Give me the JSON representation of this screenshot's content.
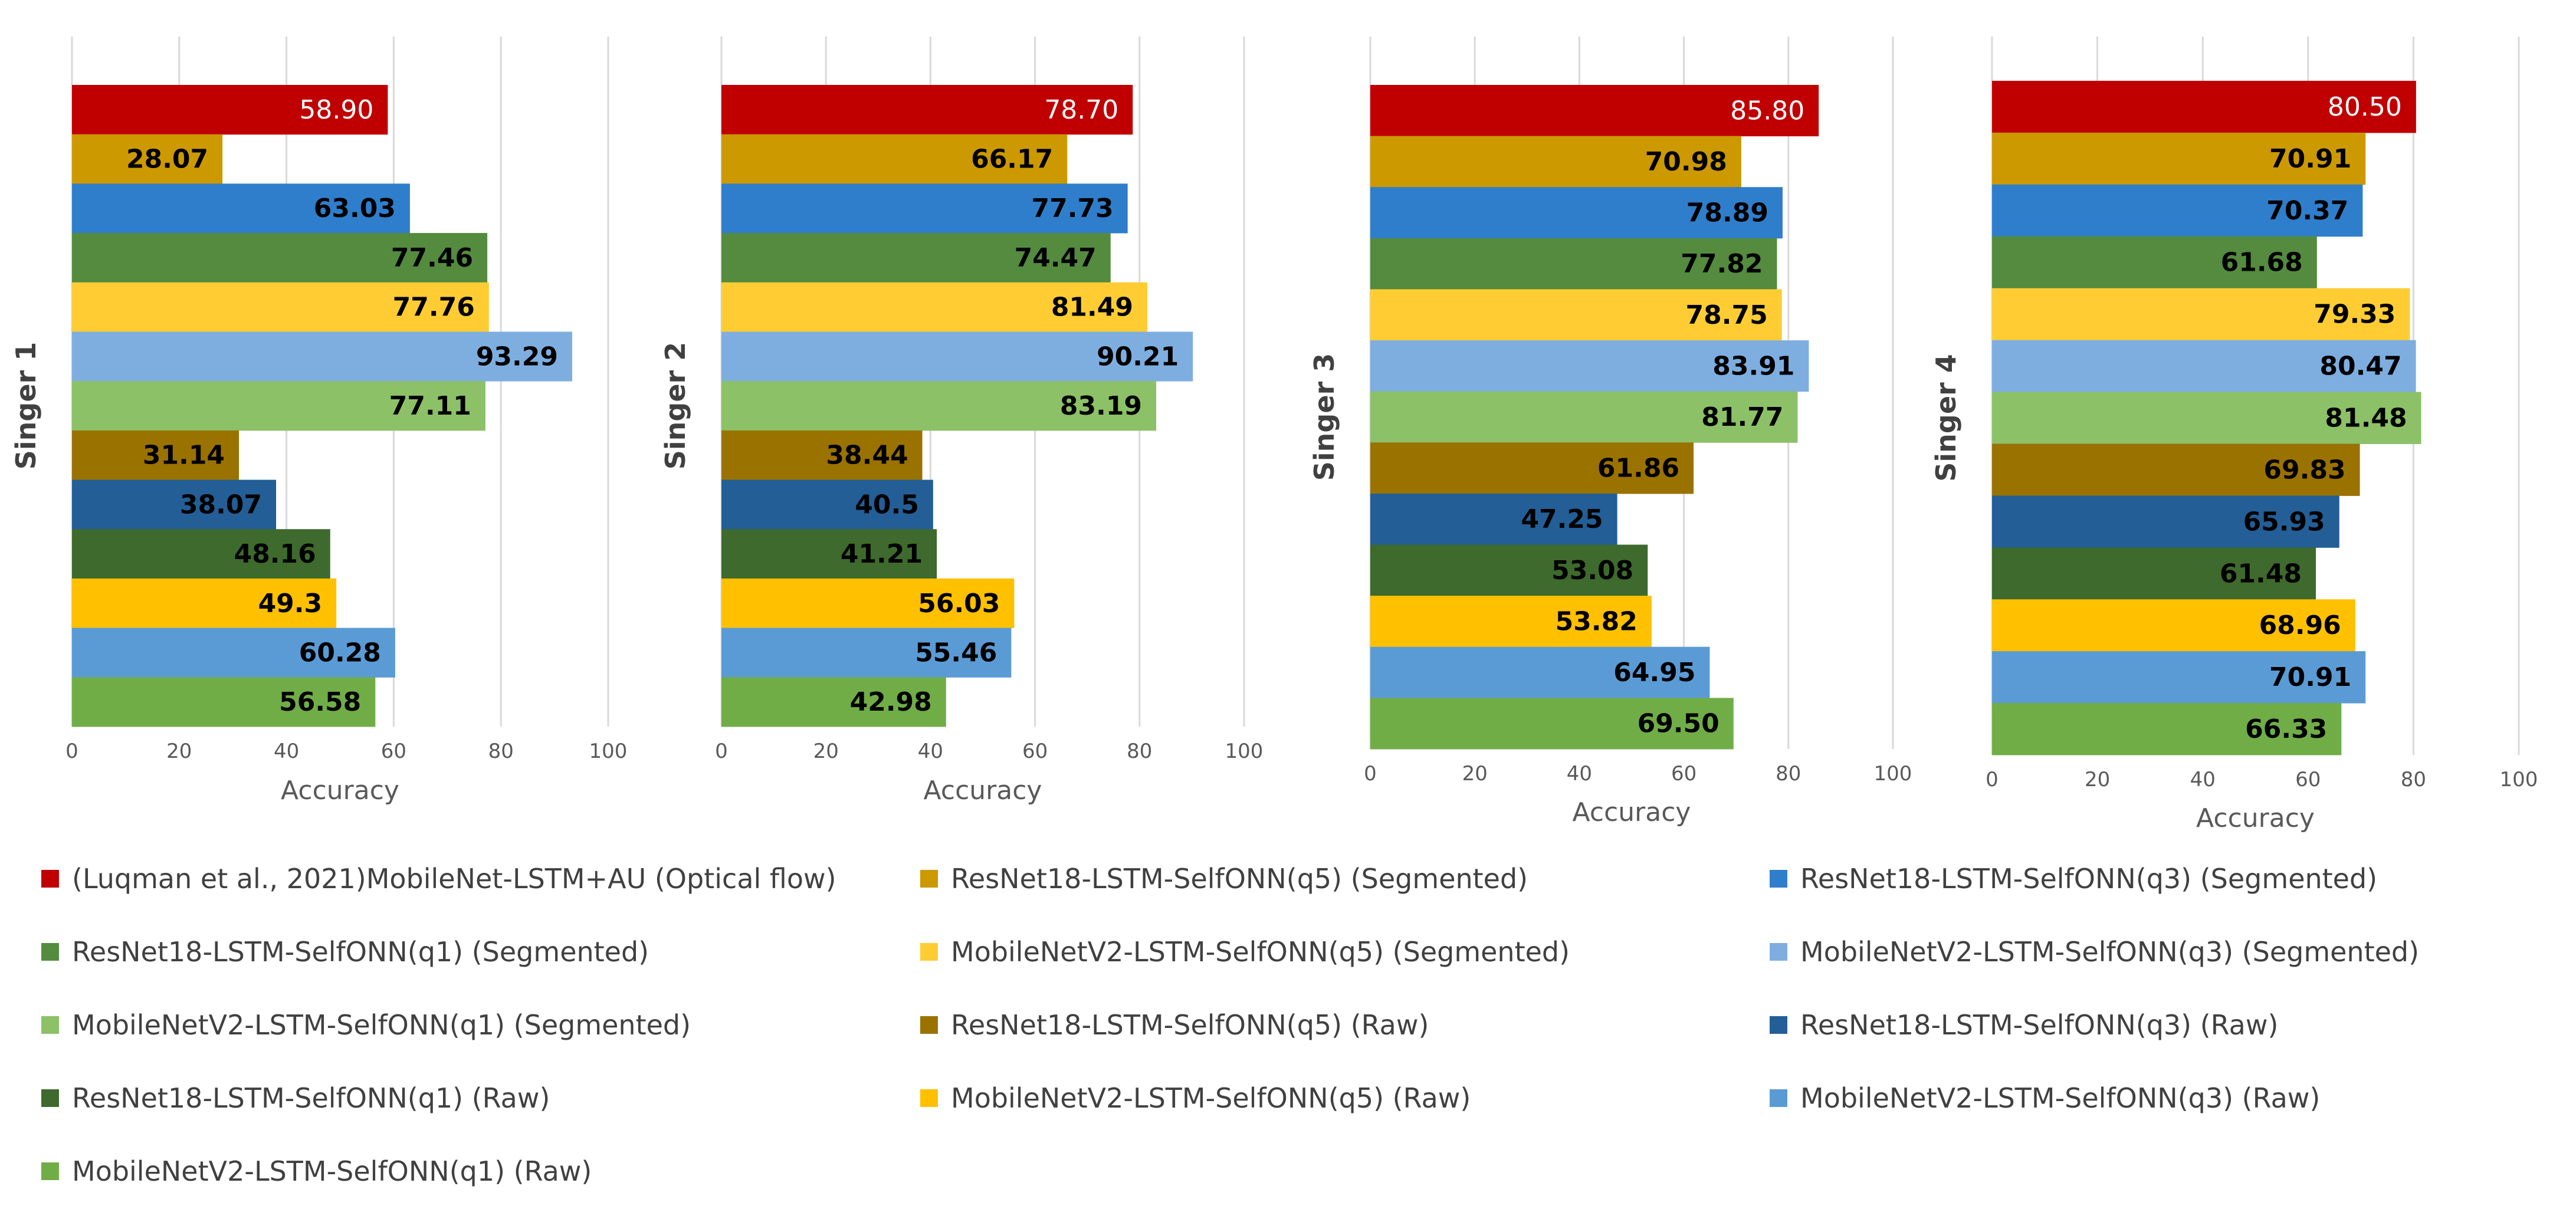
{
  "chart_data": {
    "type": "bar",
    "orientation": "horizontal",
    "xlabel": "Accuracy",
    "xlim": [
      0,
      100
    ],
    "xticks": [
      "0",
      "20",
      "40",
      "60",
      "80",
      "100"
    ],
    "grid": true,
    "legend_position": "bottom",
    "series": [
      {
        "name": "(Luqman et al., 2021)MobileNet-LSTM+AU (Optical flow)",
        "color": "#C00000",
        "label_color": "#FFFFFF"
      },
      {
        "name": "ResNet18-LSTM-SelfONN(q5) (Segmented)",
        "color": "#CC9900",
        "label_color": "#000000"
      },
      {
        "name": "ResNet18-LSTM-SelfONN(q3) (Segmented)",
        "color": "#2F7ECB",
        "label_color": "#000000"
      },
      {
        "name": "ResNet18-LSTM-SelfONN(q1) (Segmented)",
        "color": "#548B3E",
        "label_color": "#000000"
      },
      {
        "name": "MobileNetV2-LSTM-SelfONN(q5) (Segmented)",
        "color": "#FFCD33",
        "label_color": "#000000"
      },
      {
        "name": "MobileNetV2-LSTM-SelfONN(q3) (Segmented)",
        "color": "#7EAEE0",
        "label_color": "#000000"
      },
      {
        "name": "MobileNetV2-LSTM-SelfONN(q1) (Segmented)",
        "color": "#8CC168",
        "label_color": "#000000"
      },
      {
        "name": "ResNet18-LSTM-SelfONN(q5) (Raw)",
        "color": "#9A7200",
        "label_color": "#000000"
      },
      {
        "name": "ResNet18-LSTM-SelfONN(q3) (Raw)",
        "color": "#235E96",
        "label_color": "#000000"
      },
      {
        "name": "ResNet18-LSTM-SelfONN(q1) (Raw)",
        "color": "#3E6A2D",
        "label_color": "#000000"
      },
      {
        "name": "MobileNetV2-LSTM-SelfONN(q5) (Raw)",
        "color": "#FFC000",
        "label_color": "#000000"
      },
      {
        "name": "MobileNetV2-LSTM-SelfONN(q3) (Raw)",
        "color": "#5B9BD5",
        "label_color": "#000000"
      },
      {
        "name": "MobileNetV2-LSTM-SelfONN(q1) (Raw)",
        "color": "#70AD47",
        "label_color": "#000000"
      }
    ],
    "panels": [
      {
        "title": "Singer 1",
        "values": [
          58.9,
          28.07,
          63.03,
          77.46,
          77.76,
          93.29,
          77.11,
          31.14,
          38.07,
          48.16,
          49.3,
          60.28,
          56.58
        ],
        "labels": [
          "58.90",
          "28.07",
          "63.03",
          "77.46",
          "77.76",
          "93.29",
          "77.11",
          "31.14",
          "38.07",
          "48.16",
          "49.3",
          "60.28",
          "56.58"
        ]
      },
      {
        "title": "Singer 2",
        "values": [
          78.7,
          66.17,
          77.73,
          74.47,
          81.49,
          90.21,
          83.19,
          38.44,
          40.5,
          41.21,
          56.03,
          55.46,
          42.98
        ],
        "labels": [
          "78.70",
          "66.17",
          "77.73",
          "74.47",
          "81.49",
          "90.21",
          "83.19",
          "38.44",
          "40.5",
          "41.21",
          "56.03",
          "55.46",
          "42.98"
        ]
      },
      {
        "title": "Singer 3",
        "values": [
          85.8,
          70.98,
          78.89,
          77.82,
          78.75,
          83.91,
          81.77,
          61.86,
          47.25,
          53.08,
          53.82,
          64.95,
          69.5
        ],
        "labels": [
          "85.80",
          "70.98",
          "78.89",
          "77.82",
          "78.75",
          "83.91",
          "81.77",
          "61.86",
          "47.25",
          "53.08",
          "53.82",
          "64.95",
          "69.50"
        ]
      },
      {
        "title": "Singer 4",
        "values": [
          80.5,
          70.91,
          70.37,
          61.68,
          79.33,
          80.47,
          81.48,
          69.83,
          65.93,
          61.48,
          68.96,
          70.91,
          66.33
        ],
        "labels": [
          "80.50",
          "70.91",
          "70.37",
          "61.68",
          "79.33",
          "80.47",
          "81.48",
          "69.83",
          "65.93",
          "61.48",
          "68.96",
          "70.91",
          "66.33"
        ]
      }
    ]
  }
}
